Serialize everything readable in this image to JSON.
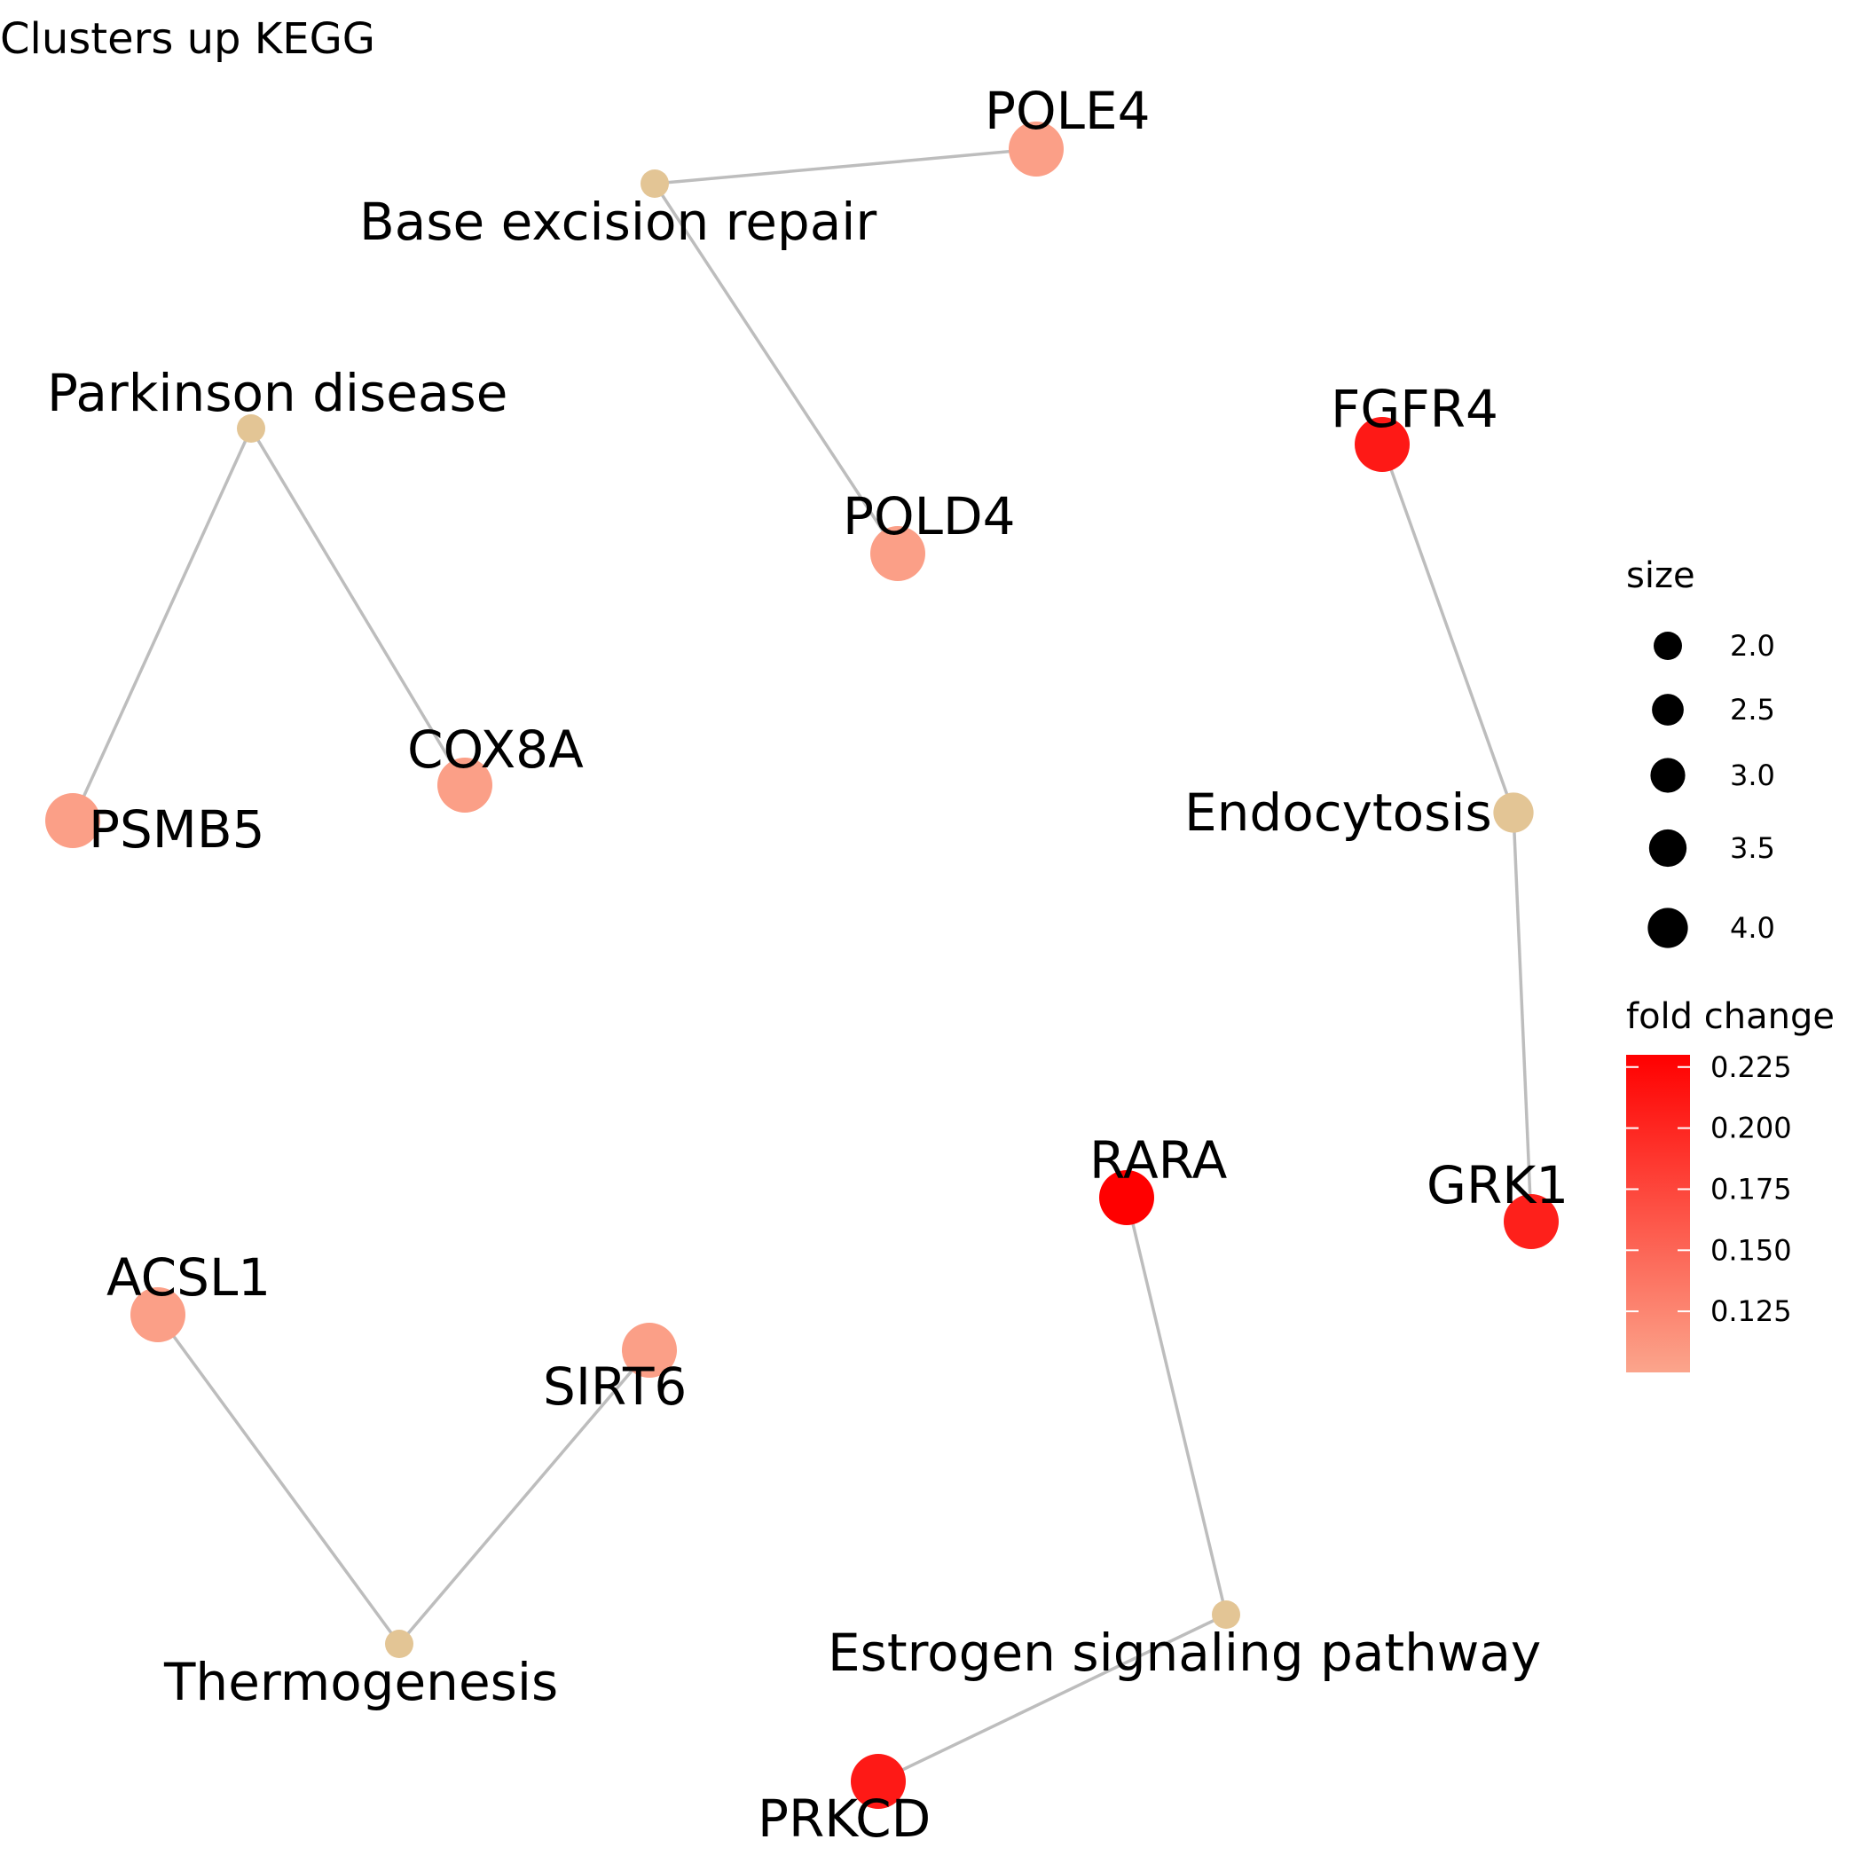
{
  "title": "Clusters up KEGG",
  "colors": {
    "pathway_node": "#e3c595",
    "edge": "#bdbdbd",
    "fold_change_low": "#fba58c",
    "fold_change_high": "#ff0000"
  },
  "nodes": [
    {
      "id": "bnode1",
      "label": "Base excision repair",
      "kind": "pathway",
      "size": 2.0
    },
    {
      "id": "bnode2",
      "label": "Parkinson disease",
      "kind": "pathway",
      "size": 2.0
    },
    {
      "id": "bnode3",
      "label": "Endocytosis",
      "kind": "pathway",
      "size": 4.0
    },
    {
      "id": "bnode4",
      "label": "Thermogenesis",
      "kind": "pathway",
      "size": 2.0
    },
    {
      "id": "bnode5",
      "label": "Estrogen signaling pathway",
      "kind": "pathway",
      "size": 2.0
    },
    {
      "id": "gnode1",
      "label": "POLE4",
      "kind": "gene",
      "fold_change": 0.105
    },
    {
      "id": "gnode2",
      "label": "POLD4",
      "kind": "gene",
      "fold_change": 0.105
    },
    {
      "id": "gnode3",
      "label": "COX8A",
      "kind": "gene",
      "fold_change": 0.105
    },
    {
      "id": "gnode4",
      "label": "PSMB5",
      "kind": "gene",
      "fold_change": 0.105
    },
    {
      "id": "gnode5",
      "label": "FGFR4",
      "kind": "gene",
      "fold_change": 0.21
    },
    {
      "id": "gnode6",
      "label": "GRK1",
      "kind": "gene",
      "fold_change": 0.205
    },
    {
      "id": "gnode7",
      "label": "RARA",
      "kind": "gene",
      "fold_change": 0.23
    },
    {
      "id": "gnode8",
      "label": "PRKCD",
      "kind": "gene",
      "fold_change": 0.21
    },
    {
      "id": "gnode9",
      "label": "ACSL1",
      "kind": "gene",
      "fold_change": 0.105
    },
    {
      "id": "gnode10",
      "label": "SIRT6",
      "kind": "gene",
      "fold_change": 0.105
    }
  ],
  "edges": [
    [
      "bnode1",
      "gnode1"
    ],
    [
      "bnode1",
      "gnode2"
    ],
    [
      "bnode2",
      "gnode3"
    ],
    [
      "bnode2",
      "gnode4"
    ],
    [
      "bnode3",
      "gnode5"
    ],
    [
      "bnode3",
      "gnode6"
    ],
    [
      "bnode4",
      "gnode9"
    ],
    [
      "bnode4",
      "gnode10"
    ],
    [
      "bnode5",
      "gnode7"
    ],
    [
      "bnode5",
      "gnode8"
    ]
  ],
  "legend": {
    "size_title": "size",
    "size_items": [
      {
        "value": 2.0,
        "label": "2.0"
      },
      {
        "value": 2.5,
        "label": "2.5"
      },
      {
        "value": 3.0,
        "label": "3.0"
      },
      {
        "value": 3.5,
        "label": "3.5"
      },
      {
        "value": 4.0,
        "label": "4.0"
      }
    ],
    "color_title": "fold change",
    "color_range": [
      0.1,
      0.23
    ],
    "color_ticks": [
      {
        "value": 0.225,
        "label": "0.225"
      },
      {
        "value": 0.2,
        "label": "0.200"
      },
      {
        "value": 0.175,
        "label": "0.175"
      },
      {
        "value": 0.15,
        "label": "0.150"
      },
      {
        "value": 0.125,
        "label": "0.125"
      }
    ]
  }
}
